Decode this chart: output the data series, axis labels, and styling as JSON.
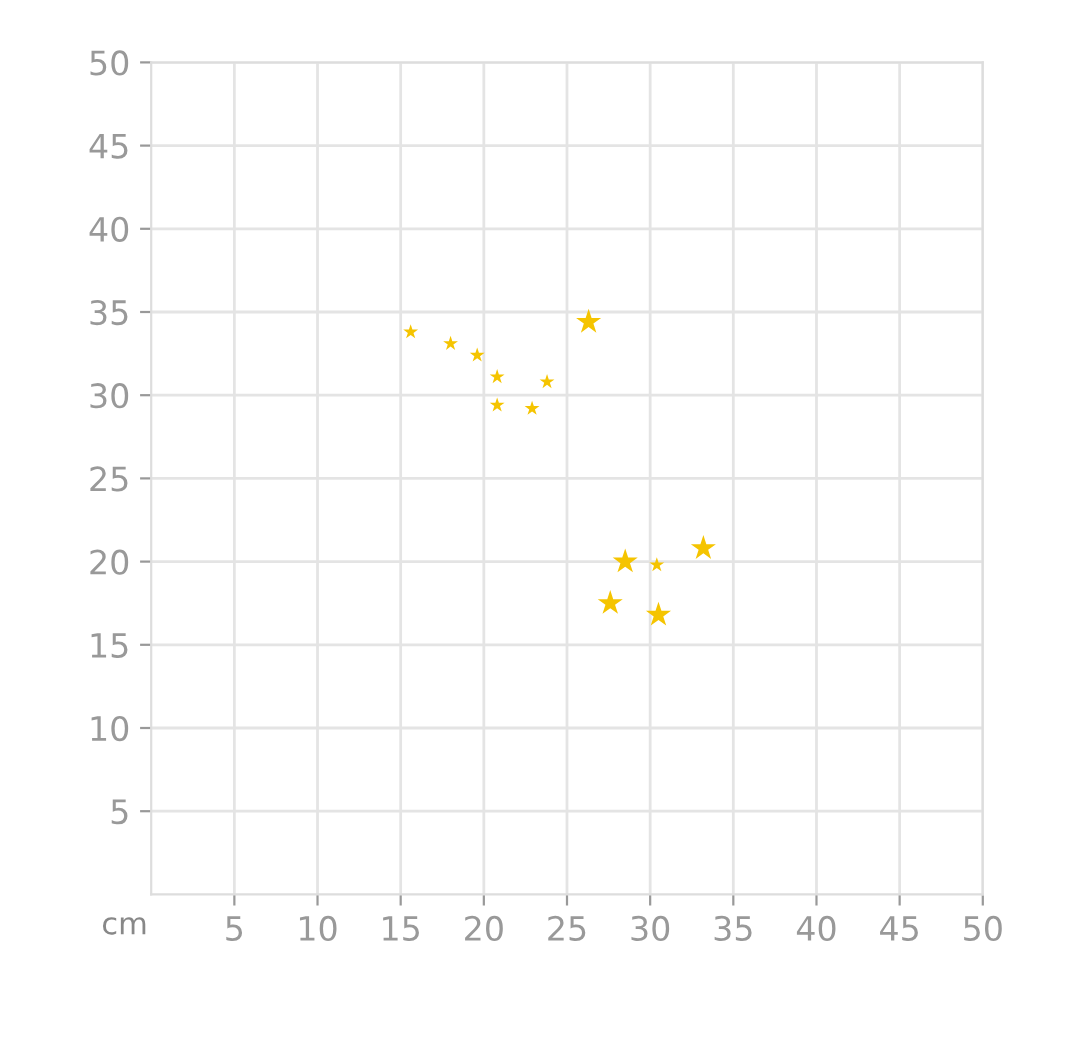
{
  "chart_data": {
    "type": "bubble",
    "xlabel": "cm",
    "marker": "star",
    "grid": true,
    "x": [
      15.6,
      18.0,
      19.6,
      20.8,
      20.8,
      22.9,
      23.8,
      26.3,
      28.5,
      30.4,
      33.2,
      27.6,
      30.5
    ],
    "series": [
      {
        "color": "#f5c400",
        "values": [
          33.8,
          33.1,
          32.4,
          31.1,
          29.4,
          29.2,
          30.8,
          34.4,
          20.0,
          19.8,
          20.8,
          17.5,
          16.8
        ],
        "sizes": [
          0.35,
          0.35,
          0.35,
          0.35,
          0.35,
          0.35,
          0.35,
          1,
          1,
          0.35,
          1,
          1,
          1
        ]
      }
    ],
    "xlim": [
      0,
      50
    ],
    "ylim": [
      0,
      50
    ],
    "xticks": [
      5,
      10,
      15,
      20,
      25,
      30,
      35,
      40,
      45,
      50
    ],
    "yticks": [
      5,
      10,
      15,
      20,
      25,
      30,
      35,
      40,
      45,
      50
    ]
  }
}
